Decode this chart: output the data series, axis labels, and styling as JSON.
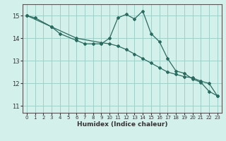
{
  "title": "",
  "xlabel": "Humidex (Indice chaleur)",
  "background_color": "#d4f0eb",
  "grid_color": "#a0cfc8",
  "line_color": "#2a6b60",
  "x_ticks": [
    0,
    1,
    2,
    3,
    4,
    5,
    6,
    7,
    8,
    9,
    10,
    11,
    12,
    13,
    14,
    15,
    16,
    17,
    18,
    19,
    20,
    21,
    22,
    23
  ],
  "ylim": [
    10.7,
    15.5
  ],
  "xlim": [
    -0.5,
    23.5
  ],
  "line1_x": [
    0,
    1,
    3,
    4,
    6,
    7,
    8,
    9,
    10,
    11,
    12,
    13,
    14,
    15,
    16,
    17,
    18,
    19,
    20,
    21,
    22,
    23
  ],
  "line1_y": [
    15.0,
    14.9,
    14.5,
    14.2,
    13.9,
    13.75,
    13.75,
    13.75,
    14.0,
    14.9,
    15.05,
    14.85,
    15.2,
    14.2,
    13.85,
    13.1,
    12.55,
    12.45,
    12.2,
    12.05,
    11.65,
    11.45
  ],
  "line2_x": [
    0,
    3,
    6,
    9,
    10,
    11,
    12,
    13,
    14,
    15,
    16,
    17,
    18,
    19,
    20,
    21,
    22,
    23
  ],
  "line2_y": [
    15.0,
    14.5,
    14.0,
    13.8,
    13.75,
    13.65,
    13.5,
    13.3,
    13.1,
    12.9,
    12.7,
    12.5,
    12.4,
    12.3,
    12.25,
    12.1,
    12.0,
    11.45
  ],
  "yticks": [
    11,
    12,
    13,
    14,
    15
  ]
}
